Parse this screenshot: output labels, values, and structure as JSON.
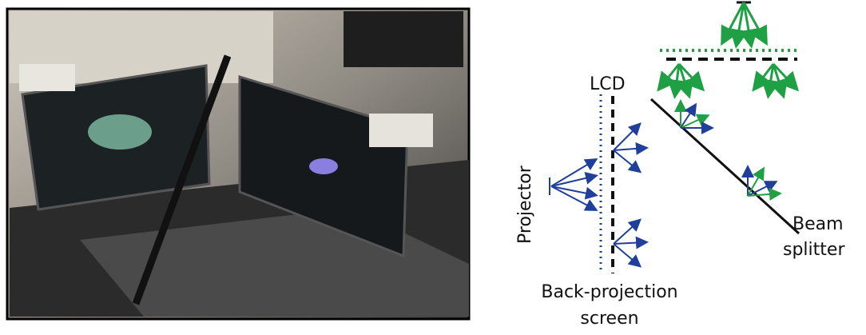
{
  "labels": {
    "lcd": "LCD",
    "projector": "Projector",
    "beam_splitter": [
      "Beam",
      "splitter"
    ],
    "back_projection_screen": [
      "Back-projection",
      "screen"
    ]
  }
}
